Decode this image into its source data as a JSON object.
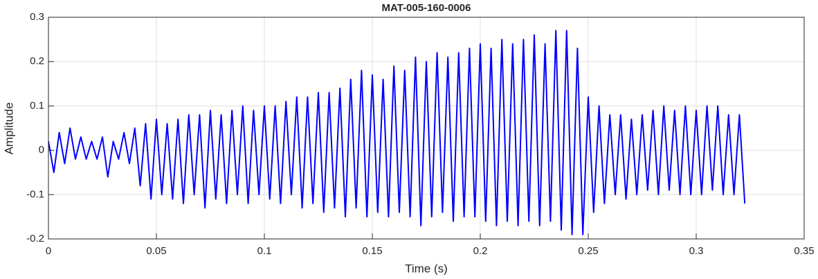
{
  "chart_data": {
    "type": "line",
    "title": "MAT-005-160-0006",
    "xlabel": "Time (s)",
    "ylabel": "Amplitude",
    "x": [
      0,
      0.0025,
      0.005,
      0.0075,
      0.01,
      0.0125,
      0.015,
      0.0175,
      0.02,
      0.0225,
      0.025,
      0.0275,
      0.03,
      0.0325,
      0.035,
      0.0375,
      0.04,
      0.0425,
      0.045,
      0.0475,
      0.05,
      0.0525,
      0.055,
      0.0575,
      0.06,
      0.0625,
      0.065,
      0.0675,
      0.07,
      0.0725,
      0.075,
      0.0775,
      0.08,
      0.0825,
      0.085,
      0.0875,
      0.09,
      0.0925,
      0.095,
      0.0975,
      0.1,
      0.1025,
      0.105,
      0.1075,
      0.11,
      0.1125,
      0.115,
      0.1175,
      0.12,
      0.1225,
      0.125,
      0.1275,
      0.13,
      0.1325,
      0.135,
      0.1375,
      0.14,
      0.1425,
      0.145,
      0.1475,
      0.15,
      0.1525,
      0.155,
      0.1575,
      0.16,
      0.1625,
      0.165,
      0.1675,
      0.17,
      0.1725,
      0.175,
      0.1775,
      0.18,
      0.1825,
      0.185,
      0.1875,
      0.19,
      0.1925,
      0.195,
      0.1975,
      0.2,
      0.2025,
      0.205,
      0.2075,
      0.21,
      0.2125,
      0.215,
      0.2175,
      0.22,
      0.2225,
      0.225,
      0.2275,
      0.23,
      0.2325,
      0.235,
      0.2375,
      0.24,
      0.2425,
      0.245,
      0.2475,
      0.25,
      0.2525,
      0.255,
      0.2575,
      0.26,
      0.2625,
      0.265,
      0.2675,
      0.27,
      0.2725,
      0.275,
      0.2775,
      0.28,
      0.2825,
      0.285,
      0.2875,
      0.29,
      0.2925,
      0.295,
      0.2975,
      0.3,
      0.3025,
      0.305,
      0.3075,
      0.31,
      0.3125,
      0.315,
      0.3175,
      0.32,
      0.3225
    ],
    "series": [
      {
        "name": "Amplitude",
        "color": "#0000ff",
        "values": [
          0.02,
          -0.05,
          0.04,
          -0.03,
          0.05,
          -0.02,
          0.03,
          -0.02,
          0.02,
          -0.02,
          0.03,
          -0.06,
          0.02,
          -0.02,
          0.04,
          -0.03,
          0.05,
          -0.08,
          0.06,
          -0.11,
          0.07,
          -0.1,
          0.06,
          -0.11,
          0.07,
          -0.12,
          0.08,
          -0.1,
          0.08,
          -0.13,
          0.09,
          -0.11,
          0.08,
          -0.12,
          0.09,
          -0.1,
          0.1,
          -0.12,
          0.09,
          -0.1,
          0.1,
          -0.11,
          0.1,
          -0.12,
          0.11,
          -0.1,
          0.12,
          -0.13,
          0.12,
          -0.12,
          0.13,
          -0.14,
          0.13,
          -0.13,
          0.14,
          -0.15,
          0.16,
          -0.13,
          0.18,
          -0.15,
          0.17,
          -0.14,
          0.16,
          -0.15,
          0.19,
          -0.14,
          0.18,
          -0.15,
          0.21,
          -0.17,
          0.2,
          -0.15,
          0.22,
          -0.14,
          0.21,
          -0.16,
          0.22,
          -0.15,
          0.23,
          -0.15,
          0.24,
          -0.16,
          0.23,
          -0.17,
          0.25,
          -0.16,
          0.24,
          -0.17,
          0.25,
          -0.16,
          0.26,
          -0.17,
          0.24,
          -0.16,
          0.27,
          -0.18,
          0.27,
          -0.19,
          0.23,
          -0.19,
          0.12,
          -0.14,
          0.1,
          -0.12,
          0.08,
          -0.1,
          0.08,
          -0.11,
          0.07,
          -0.1,
          0.08,
          -0.09,
          0.09,
          -0.1,
          0.1,
          -0.09,
          0.09,
          -0.1,
          0.1,
          -0.1,
          0.09,
          -0.1,
          0.1,
          -0.09,
          0.1,
          -0.1,
          0.08,
          -0.1,
          0.08,
          -0.12
        ]
      }
    ],
    "xlim": [
      0,
      0.35
    ],
    "xticks": [
      0,
      0.05,
      0.1,
      0.15,
      0.2,
      0.25,
      0.3,
      0.35
    ],
    "ylim": [
      -0.2,
      0.3
    ],
    "yticks": [
      -0.2,
      -0.1,
      0,
      0.1,
      0.2,
      0.3
    ],
    "grid": true
  }
}
